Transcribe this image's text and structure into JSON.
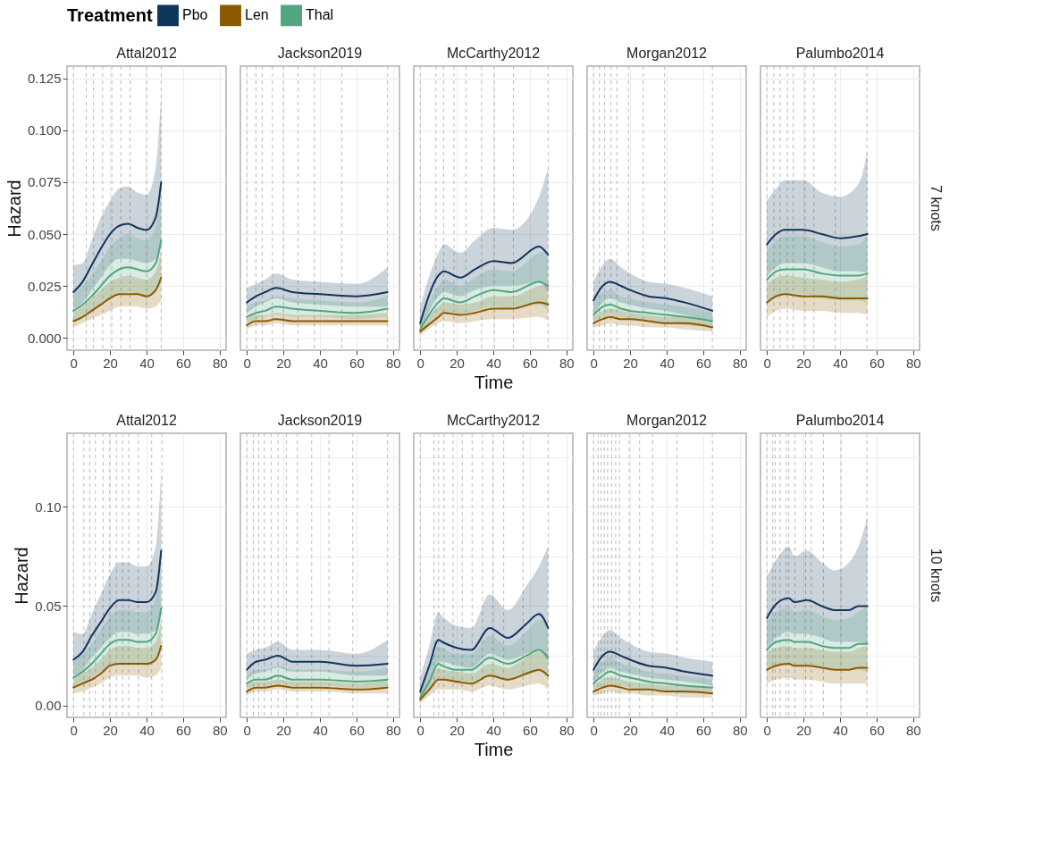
{
  "chart_data": [
    {
      "type": "line",
      "title": "Attal2012",
      "ylabel": "Hazard",
      "legend": "top",
      "legend_title": "Treatment",
      "grid": true,
      "xlim": [
        -3.5,
        83.5
      ],
      "xticks": [
        0,
        20,
        40,
        60,
        80
      ],
      "ylim": [
        -0.006,
        0.131
      ],
      "yticks": [
        {
          "value": 0,
          "label": "0.000"
        },
        {
          "value": 0.025,
          "label": "0.025"
        },
        {
          "value": 0.05,
          "label": "0.050"
        },
        {
          "value": 0.075,
          "label": "0.075"
        },
        {
          "value": 0.1,
          "label": "0.100"
        },
        {
          "value": 0.125,
          "label": "0.125"
        }
      ],
      "x": [
        0,
        5,
        10,
        15,
        20,
        25,
        30,
        35,
        40,
        45,
        48
      ],
      "ref_lines": [
        {
          "axis": "x",
          "value": 0
        },
        {
          "axis": "x",
          "value": 7
        },
        {
          "axis": "x",
          "value": 11
        },
        {
          "axis": "x",
          "value": 16
        },
        {
          "axis": "x",
          "value": 21
        },
        {
          "axis": "x",
          "value": 26
        },
        {
          "axis": "x",
          "value": 31
        },
        {
          "axis": "x",
          "value": 40
        },
        {
          "axis": "x",
          "value": 48
        }
      ],
      "series": [
        {
          "name": "Pbo",
          "color": "#12355b",
          "values": [
            0.022,
            0.027,
            0.035,
            0.043,
            0.05,
            0.054,
            0.055,
            0.053,
            0.052,
            0.058,
            0.075
          ],
          "upper": [
            0.035,
            0.036,
            0.047,
            0.058,
            0.066,
            0.072,
            0.073,
            0.07,
            0.069,
            0.082,
            0.118
          ],
          "lower": [
            0.014,
            0.017,
            0.023,
            0.029,
            0.035,
            0.038,
            0.038,
            0.037,
            0.036,
            0.038,
            0.045
          ]
        },
        {
          "name": "Len",
          "color": "#8b5a00",
          "values": [
            0.008,
            0.01,
            0.013,
            0.016,
            0.019,
            0.021,
            0.021,
            0.021,
            0.02,
            0.023,
            0.029
          ],
          "upper": [
            0.012,
            0.015,
            0.019,
            0.023,
            0.027,
            0.029,
            0.03,
            0.029,
            0.028,
            0.032,
            0.042
          ],
          "lower": [
            0.005,
            0.007,
            0.009,
            0.011,
            0.013,
            0.015,
            0.015,
            0.015,
            0.014,
            0.015,
            0.018
          ]
        },
        {
          "name": "Thal",
          "color": "#52a57f",
          "values": [
            0.013,
            0.016,
            0.02,
            0.025,
            0.03,
            0.033,
            0.034,
            0.033,
            0.032,
            0.036,
            0.047
          ],
          "upper": [
            0.021,
            0.025,
            0.03,
            0.037,
            0.044,
            0.048,
            0.05,
            0.048,
            0.047,
            0.054,
            0.072
          ],
          "lower": [
            0.008,
            0.01,
            0.013,
            0.016,
            0.019,
            0.021,
            0.022,
            0.021,
            0.02,
            0.022,
            0.027
          ]
        }
      ]
    },
    {
      "type": "line",
      "title": "Jackson2019",
      "grid": true,
      "tick_labels": "x",
      "xlim": [
        -3.5,
        83.5
      ],
      "xticks": [
        0,
        20,
        40,
        60,
        80
      ],
      "ylim": [
        -0.006,
        0.131
      ],
      "x": [
        0,
        5,
        10,
        16,
        25,
        40,
        60,
        77
      ],
      "ref_lines": [
        {
          "axis": "x",
          "value": 0
        },
        {
          "axis": "x",
          "value": 5
        },
        {
          "axis": "x",
          "value": 8.5
        },
        {
          "axis": "x",
          "value": 14
        },
        {
          "axis": "x",
          "value": 20
        },
        {
          "axis": "x",
          "value": 28
        },
        {
          "axis": "x",
          "value": 37
        },
        {
          "axis": "x",
          "value": 52
        },
        {
          "axis": "x",
          "value": 77
        }
      ],
      "series": [
        {
          "color": "#12355b",
          "values": [
            0.017,
            0.02,
            0.022,
            0.024,
            0.022,
            0.021,
            0.02,
            0.022
          ],
          "upper": [
            0.024,
            0.026,
            0.028,
            0.031,
            0.028,
            0.027,
            0.026,
            0.034
          ],
          "lower": [
            0.012,
            0.015,
            0.017,
            0.019,
            0.017,
            0.016,
            0.015,
            0.015
          ]
        },
        {
          "color": "#8b5a00",
          "values": [
            0.006,
            0.008,
            0.008,
            0.009,
            0.008,
            0.008,
            0.008,
            0.008
          ],
          "upper": [
            0.009,
            0.011,
            0.011,
            0.012,
            0.011,
            0.011,
            0.011,
            0.012
          ],
          "lower": [
            0.004,
            0.006,
            0.006,
            0.007,
            0.006,
            0.006,
            0.006,
            0.006
          ]
        },
        {
          "color": "#52a57f",
          "values": [
            0.01,
            0.012,
            0.013,
            0.015,
            0.014,
            0.013,
            0.012,
            0.014
          ],
          "upper": [
            0.015,
            0.017,
            0.018,
            0.02,
            0.019,
            0.018,
            0.017,
            0.02
          ],
          "lower": [
            0.007,
            0.009,
            0.01,
            0.011,
            0.01,
            0.01,
            0.009,
            0.01
          ]
        }
      ]
    },
    {
      "type": "line",
      "title": "McCarthy2012",
      "xlabel": "Time",
      "grid": true,
      "tick_labels": "x",
      "xlim": [
        -3.5,
        83.5
      ],
      "xticks": [
        0,
        20,
        40,
        60,
        80
      ],
      "ylim": [
        -0.006,
        0.131
      ],
      "x": [
        0,
        10,
        13,
        22,
        30,
        40,
        50,
        65,
        70
      ],
      "ref_lines": [
        {
          "axis": "x",
          "value": 0
        },
        {
          "axis": "x",
          "value": 8.6
        },
        {
          "axis": "x",
          "value": 12.8
        },
        {
          "axis": "x",
          "value": 18.5
        },
        {
          "axis": "x",
          "value": 25
        },
        {
          "axis": "x",
          "value": 33.6
        },
        {
          "axis": "x",
          "value": 40.6
        },
        {
          "axis": "x",
          "value": 51
        },
        {
          "axis": "x",
          "value": 70
        }
      ],
      "series": [
        {
          "color": "#12355b",
          "values": [
            0.007,
            0.03,
            0.032,
            0.029,
            0.033,
            0.037,
            0.036,
            0.044,
            0.04
          ],
          "upper": [
            0.015,
            0.041,
            0.045,
            0.041,
            0.047,
            0.053,
            0.052,
            0.068,
            0.082
          ],
          "lower": [
            0.003,
            0.02,
            0.022,
            0.02,
            0.023,
            0.025,
            0.025,
            0.027,
            0.022
          ]
        },
        {
          "color": "#8b5a00",
          "values": [
            0.003,
            0.01,
            0.012,
            0.011,
            0.012,
            0.014,
            0.014,
            0.017,
            0.016
          ],
          "upper": [
            0.006,
            0.015,
            0.017,
            0.016,
            0.017,
            0.02,
            0.02,
            0.025,
            0.026
          ],
          "lower": [
            0.001,
            0.007,
            0.008,
            0.007,
            0.008,
            0.009,
            0.009,
            0.01,
            0.008
          ]
        },
        {
          "color": "#52a57f",
          "values": [
            0.004,
            0.017,
            0.019,
            0.017,
            0.02,
            0.023,
            0.022,
            0.027,
            0.025
          ],
          "upper": [
            0.008,
            0.025,
            0.028,
            0.025,
            0.029,
            0.033,
            0.032,
            0.041,
            0.042
          ],
          "lower": [
            0.002,
            0.011,
            0.012,
            0.011,
            0.013,
            0.015,
            0.014,
            0.016,
            0.013
          ]
        }
      ]
    },
    {
      "type": "line",
      "title": "Morgan2012",
      "grid": true,
      "tick_labels": "x",
      "xlim": [
        -3.5,
        83.5
      ],
      "xticks": [
        0,
        20,
        40,
        60,
        80
      ],
      "ylim": [
        -0.006,
        0.131
      ],
      "x": [
        0,
        5,
        9,
        15,
        20,
        30,
        40,
        50,
        65
      ],
      "ref_lines": [
        {
          "axis": "x",
          "value": 0
        },
        {
          "axis": "x",
          "value": 3.2
        },
        {
          "axis": "x",
          "value": 6.1
        },
        {
          "axis": "x",
          "value": 9.5
        },
        {
          "axis": "x",
          "value": 12.8
        },
        {
          "axis": "x",
          "value": 19.1
        },
        {
          "axis": "x",
          "value": 27.2
        },
        {
          "axis": "x",
          "value": 38.9
        },
        {
          "axis": "x",
          "value": 65
        }
      ],
      "series": [
        {
          "color": "#12355b",
          "values": [
            0.018,
            0.025,
            0.027,
            0.025,
            0.023,
            0.02,
            0.019,
            0.017,
            0.013
          ],
          "upper": [
            0.027,
            0.035,
            0.038,
            0.034,
            0.031,
            0.027,
            0.026,
            0.024,
            0.02
          ],
          "lower": [
            0.011,
            0.017,
            0.019,
            0.017,
            0.016,
            0.014,
            0.013,
            0.011,
            0.008
          ]
        },
        {
          "color": "#8b5a00",
          "values": [
            0.007,
            0.009,
            0.01,
            0.009,
            0.009,
            0.008,
            0.007,
            0.007,
            0.005
          ],
          "upper": [
            0.01,
            0.013,
            0.014,
            0.013,
            0.012,
            0.011,
            0.01,
            0.01,
            0.008
          ],
          "lower": [
            0.005,
            0.006,
            0.007,
            0.006,
            0.006,
            0.005,
            0.005,
            0.004,
            0.003
          ]
        },
        {
          "color": "#52a57f",
          "values": [
            0.011,
            0.015,
            0.016,
            0.014,
            0.013,
            0.012,
            0.011,
            0.01,
            0.008
          ],
          "upper": [
            0.017,
            0.022,
            0.023,
            0.02,
            0.019,
            0.017,
            0.016,
            0.015,
            0.012
          ],
          "lower": [
            0.007,
            0.01,
            0.011,
            0.01,
            0.009,
            0.008,
            0.007,
            0.006,
            0.005
          ]
        }
      ]
    },
    {
      "type": "line",
      "title": "Palumbo2014",
      "grid": true,
      "tick_labels": "x",
      "annotations": [
        "7 knots"
      ],
      "xlim": [
        -3.5,
        83.5
      ],
      "xticks": [
        0,
        20,
        40,
        60,
        80
      ],
      "ylim": [
        -0.006,
        0.131
      ],
      "x": [
        0,
        5,
        10,
        20,
        30,
        40,
        50,
        55
      ],
      "ref_lines": [
        {
          "axis": "x",
          "value": 0
        },
        {
          "axis": "x",
          "value": 3.8
        },
        {
          "axis": "x",
          "value": 7.2
        },
        {
          "axis": "x",
          "value": 11.2
        },
        {
          "axis": "x",
          "value": 14.4
        },
        {
          "axis": "x",
          "value": 20.9
        },
        {
          "axis": "x",
          "value": 25.7
        },
        {
          "axis": "x",
          "value": 37.4
        },
        {
          "axis": "x",
          "value": 54.7
        }
      ],
      "series": [
        {
          "color": "#12355b",
          "values": [
            0.045,
            0.05,
            0.052,
            0.052,
            0.05,
            0.048,
            0.049,
            0.05
          ],
          "upper": [
            0.066,
            0.072,
            0.076,
            0.076,
            0.07,
            0.068,
            0.074,
            0.09
          ],
          "lower": [
            0.03,
            0.034,
            0.036,
            0.036,
            0.034,
            0.032,
            0.032,
            0.031
          ]
        },
        {
          "color": "#8b5a00",
          "values": [
            0.017,
            0.02,
            0.021,
            0.02,
            0.02,
            0.019,
            0.019,
            0.019
          ],
          "upper": [
            0.026,
            0.029,
            0.03,
            0.029,
            0.028,
            0.027,
            0.028,
            0.03
          ],
          "lower": [
            0.01,
            0.013,
            0.014,
            0.013,
            0.013,
            0.012,
            0.012,
            0.011
          ]
        },
        {
          "color": "#52a57f",
          "values": [
            0.028,
            0.032,
            0.033,
            0.033,
            0.031,
            0.03,
            0.03,
            0.031
          ],
          "upper": [
            0.042,
            0.047,
            0.049,
            0.049,
            0.046,
            0.044,
            0.045,
            0.05
          ],
          "lower": [
            0.017,
            0.02,
            0.021,
            0.021,
            0.019,
            0.018,
            0.018,
            0.017
          ]
        }
      ]
    },
    {
      "type": "line",
      "title": "Attal2012",
      "ylabel": "Hazard",
      "grid": true,
      "xlim": [
        -3.5,
        83.5
      ],
      "xticks": [
        0,
        20,
        40,
        60,
        80
      ],
      "ylim": [
        -0.006,
        0.137
      ],
      "yticks": [
        {
          "value": 0,
          "label": "0.00"
        },
        {
          "value": 0.05,
          "label": "0.05"
        },
        {
          "value": 0.1,
          "label": "0.10"
        }
      ],
      "x": [
        0,
        5,
        10,
        15,
        20,
        25,
        30,
        35,
        40,
        45,
        48
      ],
      "ref_lines": [
        {
          "axis": "x",
          "value": 0
        },
        {
          "axis": "x",
          "value": 5.7
        },
        {
          "axis": "x",
          "value": 8.9
        },
        {
          "axis": "x",
          "value": 12
        },
        {
          "axis": "x",
          "value": 16.2
        },
        {
          "axis": "x",
          "value": 19.8
        },
        {
          "axis": "x",
          "value": 23.5
        },
        {
          "axis": "x",
          "value": 26.9
        },
        {
          "axis": "x",
          "value": 30.2
        },
        {
          "axis": "x",
          "value": 35.5
        },
        {
          "axis": "x",
          "value": 42.8
        },
        {
          "axis": "x",
          "value": 48.4
        }
      ],
      "series": [
        {
          "color": "#12355b",
          "values": [
            0.023,
            0.027,
            0.035,
            0.042,
            0.049,
            0.053,
            0.053,
            0.052,
            0.052,
            0.057,
            0.078
          ],
          "upper": [
            0.037,
            0.036,
            0.046,
            0.056,
            0.066,
            0.072,
            0.072,
            0.07,
            0.07,
            0.08,
            0.118
          ],
          "lower": [
            0.015,
            0.018,
            0.024,
            0.029,
            0.034,
            0.037,
            0.037,
            0.036,
            0.036,
            0.038,
            0.046
          ]
        },
        {
          "color": "#8b5a00",
          "values": [
            0.009,
            0.011,
            0.013,
            0.016,
            0.02,
            0.021,
            0.021,
            0.021,
            0.021,
            0.023,
            0.03
          ],
          "upper": [
            0.013,
            0.016,
            0.019,
            0.023,
            0.028,
            0.03,
            0.03,
            0.029,
            0.029,
            0.032,
            0.043
          ],
          "lower": [
            0.006,
            0.007,
            0.009,
            0.011,
            0.014,
            0.015,
            0.015,
            0.015,
            0.014,
            0.015,
            0.019
          ]
        },
        {
          "color": "#52a57f",
          "values": [
            0.014,
            0.017,
            0.021,
            0.026,
            0.031,
            0.033,
            0.033,
            0.032,
            0.032,
            0.036,
            0.049
          ],
          "upper": [
            0.022,
            0.026,
            0.031,
            0.038,
            0.045,
            0.048,
            0.048,
            0.047,
            0.047,
            0.054,
            0.074
          ],
          "lower": [
            0.009,
            0.011,
            0.014,
            0.017,
            0.02,
            0.021,
            0.021,
            0.021,
            0.02,
            0.022,
            0.028
          ]
        }
      ]
    },
    {
      "type": "line",
      "title": "Jackson2019",
      "grid": true,
      "tick_labels": "x",
      "xlim": [
        -3.5,
        83.5
      ],
      "xticks": [
        0,
        20,
        40,
        60,
        80
      ],
      "ylim": [
        -0.006,
        0.137
      ],
      "x": [
        0,
        5,
        10,
        17,
        25,
        40,
        60,
        77
      ],
      "ref_lines": [
        {
          "axis": "x",
          "value": 0
        },
        {
          "axis": "x",
          "value": 3.6
        },
        {
          "axis": "x",
          "value": 6.5
        },
        {
          "axis": "x",
          "value": 9.6
        },
        {
          "axis": "x",
          "value": 13.4
        },
        {
          "axis": "x",
          "value": 17.1
        },
        {
          "axis": "x",
          "value": 21.6
        },
        {
          "axis": "x",
          "value": 27.6
        },
        {
          "axis": "x",
          "value": 35.5
        },
        {
          "axis": "x",
          "value": 45
        },
        {
          "axis": "x",
          "value": 58
        },
        {
          "axis": "x",
          "value": 77
        }
      ],
      "series": [
        {
          "color": "#12355b",
          "values": [
            0.018,
            0.022,
            0.023,
            0.025,
            0.022,
            0.022,
            0.02,
            0.021
          ],
          "upper": [
            0.026,
            0.028,
            0.029,
            0.032,
            0.028,
            0.028,
            0.026,
            0.033
          ],
          "lower": [
            0.013,
            0.016,
            0.017,
            0.019,
            0.017,
            0.017,
            0.015,
            0.015
          ]
        },
        {
          "color": "#8b5a00",
          "values": [
            0.007,
            0.009,
            0.009,
            0.01,
            0.009,
            0.009,
            0.008,
            0.009
          ],
          "upper": [
            0.01,
            0.012,
            0.012,
            0.013,
            0.012,
            0.012,
            0.011,
            0.013
          ],
          "lower": [
            0.005,
            0.007,
            0.007,
            0.008,
            0.007,
            0.007,
            0.006,
            0.006
          ]
        },
        {
          "color": "#52a57f",
          "values": [
            0.011,
            0.013,
            0.013,
            0.015,
            0.013,
            0.013,
            0.012,
            0.013
          ],
          "upper": [
            0.016,
            0.018,
            0.018,
            0.02,
            0.018,
            0.018,
            0.017,
            0.019
          ],
          "lower": [
            0.008,
            0.01,
            0.01,
            0.011,
            0.01,
            0.01,
            0.009,
            0.009
          ]
        }
      ]
    },
    {
      "type": "line",
      "title": "McCarthy2012",
      "xlabel": "Time",
      "grid": true,
      "tick_labels": "x",
      "xlim": [
        -3.5,
        83.5
      ],
      "xticks": [
        0,
        20,
        40,
        60,
        80
      ],
      "ylim": [
        -0.006,
        0.137
      ],
      "x": [
        0,
        5,
        10,
        12,
        20,
        28,
        38,
        48,
        58,
        65,
        70
      ],
      "ref_lines": [
        {
          "axis": "x",
          "value": 0
        },
        {
          "axis": "x",
          "value": 7.6
        },
        {
          "axis": "x",
          "value": 10.1
        },
        {
          "axis": "x",
          "value": 13
        },
        {
          "axis": "x",
          "value": 18
        },
        {
          "axis": "x",
          "value": 23
        },
        {
          "axis": "x",
          "value": 28.4
        },
        {
          "axis": "x",
          "value": 34.1
        },
        {
          "axis": "x",
          "value": 39.7
        },
        {
          "axis": "x",
          "value": 45.7
        },
        {
          "axis": "x",
          "value": 56.3
        },
        {
          "axis": "x",
          "value": 70
        }
      ],
      "series": [
        {
          "color": "#12355b",
          "values": [
            0.007,
            0.02,
            0.033,
            0.032,
            0.029,
            0.028,
            0.039,
            0.034,
            0.041,
            0.046,
            0.039
          ],
          "upper": [
            0.014,
            0.03,
            0.047,
            0.045,
            0.04,
            0.039,
            0.056,
            0.048,
            0.06,
            0.07,
            0.08
          ],
          "lower": [
            0.003,
            0.012,
            0.022,
            0.022,
            0.02,
            0.019,
            0.026,
            0.023,
            0.026,
            0.028,
            0.022
          ]
        },
        {
          "color": "#8b5a00",
          "values": [
            0.003,
            0.008,
            0.013,
            0.013,
            0.012,
            0.011,
            0.015,
            0.013,
            0.016,
            0.018,
            0.015
          ],
          "upper": [
            0.006,
            0.012,
            0.019,
            0.018,
            0.017,
            0.016,
            0.021,
            0.019,
            0.024,
            0.027,
            0.026
          ],
          "lower": [
            0.001,
            0.005,
            0.008,
            0.008,
            0.008,
            0.007,
            0.01,
            0.008,
            0.01,
            0.011,
            0.008
          ]
        },
        {
          "color": "#52a57f",
          "values": [
            0.004,
            0.012,
            0.021,
            0.02,
            0.018,
            0.018,
            0.024,
            0.021,
            0.025,
            0.028,
            0.024
          ],
          "upper": [
            0.008,
            0.018,
            0.03,
            0.029,
            0.026,
            0.026,
            0.035,
            0.03,
            0.037,
            0.043,
            0.042
          ],
          "lower": [
            0.002,
            0.007,
            0.013,
            0.013,
            0.011,
            0.011,
            0.015,
            0.013,
            0.015,
            0.017,
            0.013
          ]
        }
      ]
    },
    {
      "type": "line",
      "title": "Morgan2012",
      "grid": true,
      "tick_labels": "x",
      "xlim": [
        -3.5,
        83.5
      ],
      "xticks": [
        0,
        20,
        40,
        60,
        80
      ],
      "ylim": [
        -0.006,
        0.137
      ],
      "x": [
        0,
        5,
        9,
        15,
        20,
        30,
        40,
        50,
        65
      ],
      "ref_lines": [
        {
          "axis": "x",
          "value": 0
        },
        {
          "axis": "x",
          "value": 2.5
        },
        {
          "axis": "x",
          "value": 4.1
        },
        {
          "axis": "x",
          "value": 5.9
        },
        {
          "axis": "x",
          "value": 7.7
        },
        {
          "axis": "x",
          "value": 9.9
        },
        {
          "axis": "x",
          "value": 12.1
        },
        {
          "axis": "x",
          "value": 14.2
        },
        {
          "axis": "x",
          "value": 19.5
        },
        {
          "axis": "x",
          "value": 25.2
        },
        {
          "axis": "x",
          "value": 32.3
        },
        {
          "axis": "x",
          "value": 45.6
        },
        {
          "axis": "x",
          "value": 65
        }
      ],
      "series": [
        {
          "color": "#12355b",
          "values": [
            0.018,
            0.025,
            0.027,
            0.025,
            0.023,
            0.02,
            0.019,
            0.017,
            0.015
          ],
          "upper": [
            0.027,
            0.035,
            0.038,
            0.034,
            0.031,
            0.027,
            0.026,
            0.024,
            0.022
          ],
          "lower": [
            0.011,
            0.017,
            0.019,
            0.017,
            0.016,
            0.014,
            0.013,
            0.012,
            0.01
          ]
        },
        {
          "color": "#8b5a00",
          "values": [
            0.007,
            0.009,
            0.01,
            0.009,
            0.008,
            0.008,
            0.007,
            0.007,
            0.006
          ],
          "upper": [
            0.01,
            0.013,
            0.014,
            0.013,
            0.012,
            0.011,
            0.01,
            0.01,
            0.009
          ],
          "lower": [
            0.005,
            0.006,
            0.007,
            0.006,
            0.006,
            0.005,
            0.005,
            0.004,
            0.004
          ]
        },
        {
          "color": "#52a57f",
          "values": [
            0.011,
            0.015,
            0.017,
            0.015,
            0.014,
            0.012,
            0.011,
            0.01,
            0.009
          ],
          "upper": [
            0.017,
            0.022,
            0.024,
            0.021,
            0.02,
            0.017,
            0.016,
            0.015,
            0.013
          ],
          "lower": [
            0.007,
            0.01,
            0.011,
            0.01,
            0.009,
            0.008,
            0.007,
            0.006,
            0.006
          ]
        }
      ]
    },
    {
      "type": "line",
      "title": "Palumbo2014",
      "grid": true,
      "tick_labels": "x",
      "annotations": [
        "10 knots"
      ],
      "xlim": [
        -3.5,
        83.5
      ],
      "xticks": [
        0,
        20,
        40,
        60,
        80
      ],
      "ylim": [
        -0.006,
        0.137
      ],
      "x": [
        0,
        5,
        12,
        15,
        22,
        30,
        37,
        45,
        50,
        55
      ],
      "ref_lines": [
        {
          "axis": "x",
          "value": 0
        },
        {
          "axis": "x",
          "value": 3.2
        },
        {
          "axis": "x",
          "value": 4.5
        },
        {
          "axis": "x",
          "value": 7.2
        },
        {
          "axis": "x",
          "value": 10.6
        },
        {
          "axis": "x",
          "value": 12
        },
        {
          "axis": "x",
          "value": 15.3
        },
        {
          "axis": "x",
          "value": 21.2
        },
        {
          "axis": "x",
          "value": 24.3
        },
        {
          "axis": "x",
          "value": 30.9
        },
        {
          "axis": "x",
          "value": 40.6
        },
        {
          "axis": "x",
          "value": 54.7
        }
      ],
      "series": [
        {
          "color": "#12355b",
          "values": [
            0.044,
            0.051,
            0.054,
            0.052,
            0.053,
            0.05,
            0.048,
            0.048,
            0.05,
            0.05
          ],
          "upper": [
            0.065,
            0.073,
            0.08,
            0.075,
            0.078,
            0.072,
            0.068,
            0.072,
            0.08,
            0.095
          ],
          "lower": [
            0.029,
            0.034,
            0.037,
            0.036,
            0.036,
            0.034,
            0.032,
            0.032,
            0.032,
            0.031
          ]
        },
        {
          "color": "#8b5a00",
          "values": [
            0.018,
            0.02,
            0.021,
            0.02,
            0.02,
            0.019,
            0.018,
            0.018,
            0.019,
            0.019
          ],
          "upper": [
            0.027,
            0.029,
            0.03,
            0.029,
            0.029,
            0.028,
            0.027,
            0.027,
            0.029,
            0.03
          ],
          "lower": [
            0.011,
            0.013,
            0.014,
            0.013,
            0.013,
            0.012,
            0.011,
            0.011,
            0.011,
            0.011
          ]
        },
        {
          "color": "#52a57f",
          "values": [
            0.028,
            0.032,
            0.033,
            0.032,
            0.032,
            0.03,
            0.029,
            0.029,
            0.031,
            0.031
          ],
          "upper": [
            0.042,
            0.047,
            0.049,
            0.047,
            0.048,
            0.045,
            0.043,
            0.044,
            0.047,
            0.05
          ],
          "lower": [
            0.017,
            0.02,
            0.021,
            0.02,
            0.02,
            0.019,
            0.018,
            0.018,
            0.018,
            0.017
          ]
        }
      ]
    }
  ]
}
